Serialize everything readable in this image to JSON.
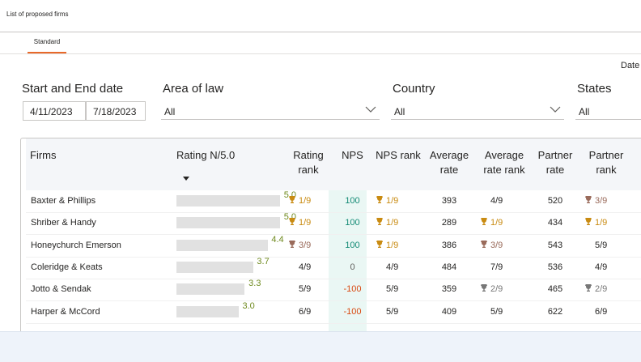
{
  "page": {
    "title": "List of proposed firms"
  },
  "tabs": [
    {
      "label": "Standard",
      "active": true
    }
  ],
  "date_label": "Date",
  "slicers": {
    "start_end": {
      "title": "Start and End date",
      "start": "4/11/2023",
      "end": "7/18/2023"
    },
    "area_of_law": {
      "title": "Area of law",
      "value": "All"
    },
    "country": {
      "title": "Country",
      "value": "All"
    },
    "states": {
      "title": "States",
      "value": "All"
    }
  },
  "table": {
    "columns": [
      "Firms",
      "Rating N/5.0",
      "Rating rank",
      "NPS",
      "NPS rank",
      "Average rate",
      "Average rate rank",
      "Partner rate",
      "Partner rank"
    ],
    "rows": [
      {
        "firm": "Baxter & Phillips",
        "rating": "5.0",
        "rating_fill": 1.0,
        "rating_rank": "1/9",
        "rating_rank_medal": "gold",
        "nps": "100",
        "nps_rank": "1/9",
        "nps_rank_medal": "gold",
        "avg_rate": "393",
        "avg_rate_rank": "4/9",
        "avg_rate_rank_medal": "",
        "partner_rate": "520",
        "partner_rank": "3/9",
        "partner_rank_medal": "bronze"
      },
      {
        "firm": "Shriber & Handy",
        "rating": "5.0",
        "rating_fill": 1.0,
        "rating_rank": "1/9",
        "rating_rank_medal": "gold",
        "nps": "100",
        "nps_rank": "1/9",
        "nps_rank_medal": "gold",
        "avg_rate": "289",
        "avg_rate_rank": "1/9",
        "avg_rate_rank_medal": "gold",
        "partner_rate": "434",
        "partner_rank": "1/9",
        "partner_rank_medal": "gold"
      },
      {
        "firm": "Honeychurch Emerson",
        "rating": "4.4",
        "rating_fill": 0.88,
        "rating_rank": "3/9",
        "rating_rank_medal": "bronze",
        "nps": "100",
        "nps_rank": "1/9",
        "nps_rank_medal": "gold",
        "avg_rate": "386",
        "avg_rate_rank": "3/9",
        "avg_rate_rank_medal": "bronze",
        "partner_rate": "543",
        "partner_rank": "5/9",
        "partner_rank_medal": ""
      },
      {
        "firm": "Coleridge & Keats",
        "rating": "3.7",
        "rating_fill": 0.74,
        "rating_rank": "4/9",
        "rating_rank_medal": "",
        "nps": "0",
        "nps_rank": "4/9",
        "nps_rank_medal": "",
        "avg_rate": "484",
        "avg_rate_rank": "7/9",
        "avg_rate_rank_medal": "",
        "partner_rate": "536",
        "partner_rank": "4/9",
        "partner_rank_medal": ""
      },
      {
        "firm": "Jotto & Sendak",
        "rating": "3.3",
        "rating_fill": 0.66,
        "rating_rank": "5/9",
        "rating_rank_medal": "",
        "nps": "-100",
        "nps_rank": "5/9",
        "nps_rank_medal": "",
        "avg_rate": "359",
        "avg_rate_rank": "2/9",
        "avg_rate_rank_medal": "silver",
        "partner_rate": "465",
        "partner_rank": "2/9",
        "partner_rank_medal": "silver"
      },
      {
        "firm": "Harper & McCord",
        "rating": "3.0",
        "rating_fill": 0.6,
        "rating_rank": "6/9",
        "rating_rank_medal": "",
        "nps": "-100",
        "nps_rank": "5/9",
        "nps_rank_medal": "",
        "avg_rate": "409",
        "avg_rate_rank": "5/9",
        "avg_rate_rank_medal": "",
        "partner_rate": "622",
        "partner_rank": "6/9",
        "partner_rank_medal": ""
      }
    ]
  },
  "colors": {
    "accent": "#e8692a",
    "gold": "#c98b12",
    "bronze": "#9a6b5b",
    "silver": "#777777",
    "nps_positive": "#128a74",
    "nps_negative": "#d9480f",
    "rating_value": "#6f8a1f"
  }
}
